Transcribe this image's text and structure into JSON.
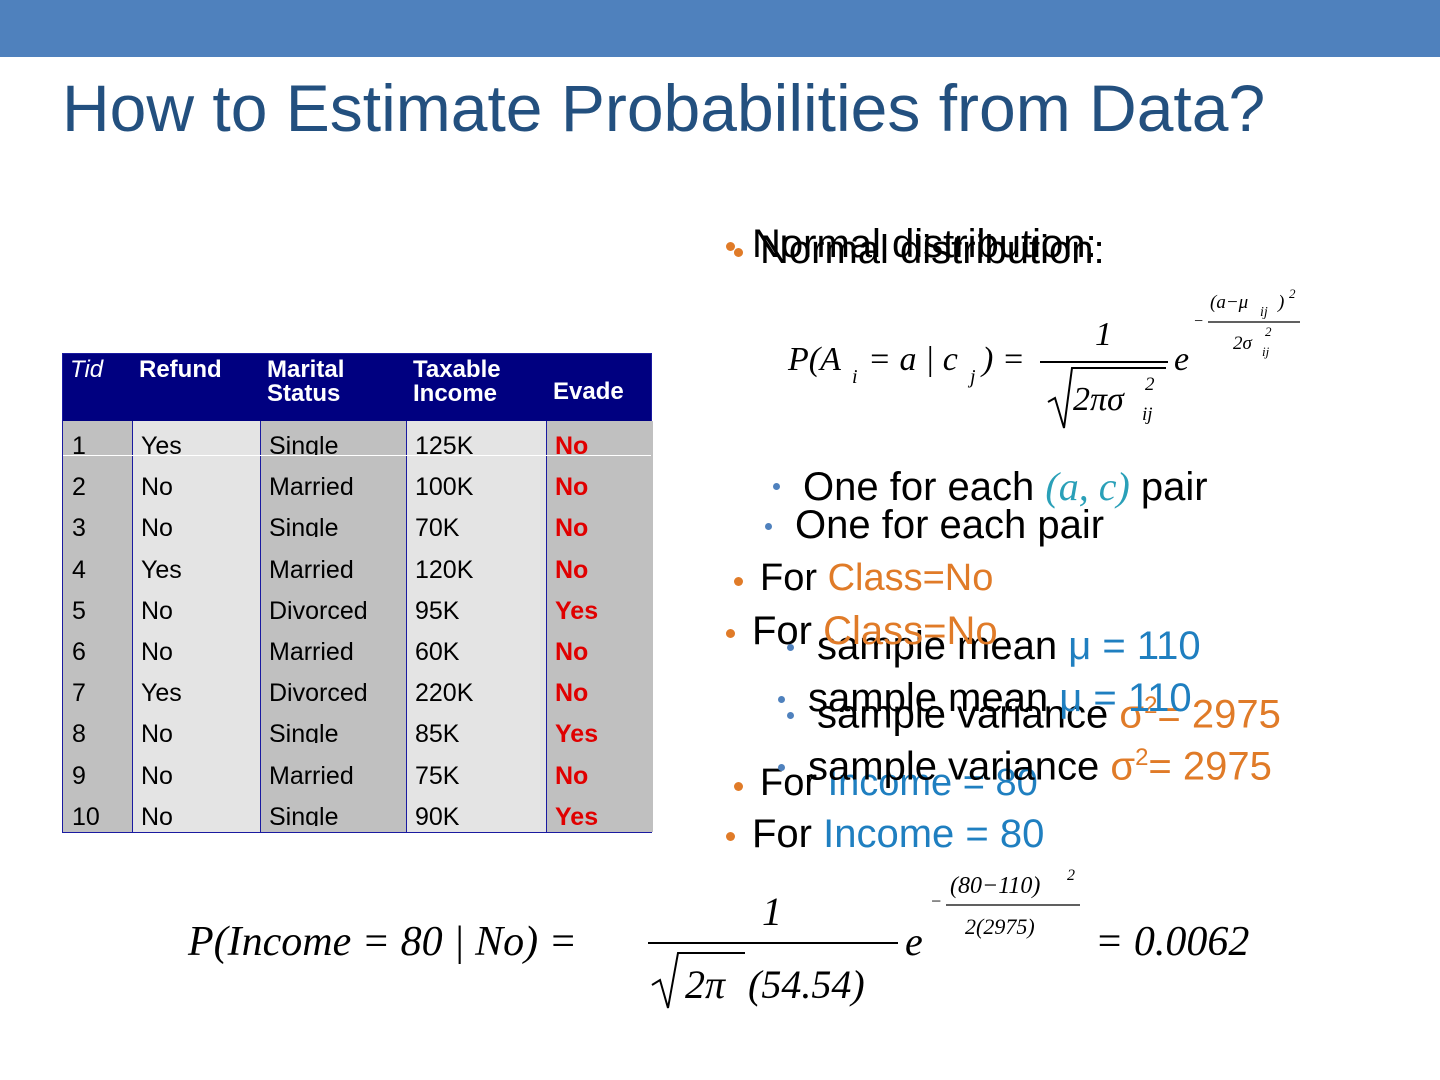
{
  "header": {
    "title": "How to Estimate Probabilities from Data?"
  },
  "table": {
    "columns": [
      "Tid",
      "Refund",
      "Marital Status",
      "Taxable Income",
      "Evade"
    ],
    "rows": [
      [
        "1",
        "Yes",
        "Single",
        "125K",
        "No"
      ],
      [
        "2",
        "No",
        "Married",
        "100K",
        "No"
      ],
      [
        "3",
        "No",
        "Single",
        "70K",
        "No"
      ],
      [
        "4",
        "Yes",
        "Married",
        "120K",
        "No"
      ],
      [
        "5",
        "No",
        "Divorced",
        "95K",
        "Yes"
      ],
      [
        "6",
        "No",
        "Married",
        "60K",
        "No"
      ],
      [
        "7",
        "Yes",
        "Divorced",
        "220K",
        "No"
      ],
      [
        "8",
        "No",
        "Single",
        "85K",
        "Yes"
      ],
      [
        "9",
        "No",
        "Married",
        "75K",
        "No"
      ],
      [
        "10",
        "No",
        "Single",
        "90K",
        "Yes"
      ]
    ]
  },
  "bullets": {
    "back": [
      {
        "segments": [
          {
            "text": "Normal distribution:",
            "color": "#000000"
          }
        ]
      },
      {
        "segments": [
          {
            "text": "One for each pair",
            "color": "#000000"
          }
        ]
      },
      {
        "segments": [
          {
            "text": "For ",
            "color": "#000000"
          },
          {
            "text": "Class=No",
            "color": "#e07b28"
          }
        ]
      },
      {
        "segments": [
          {
            "text": "sample mean ",
            "color": "#000000"
          },
          {
            "text": "μ = 110",
            "color": "#1f7fc0"
          }
        ]
      },
      {
        "segments": [
          {
            "text": "sample variance ",
            "color": "#000000"
          },
          {
            "text": "σ",
            "color": "#e07b28"
          },
          {
            "text": "2",
            "color": "#e07b28",
            "sup": true
          },
          {
            "text": "= 2975",
            "color": "#e07b28"
          }
        ]
      },
      {
        "segments": [
          {
            "text": "For ",
            "color": "#000000"
          },
          {
            "text": "Income = 80",
            "color": "#1f7fc0"
          }
        ]
      }
    ],
    "front": [
      {
        "segments": [
          {
            "text": "Normal distribution:",
            "color": "#000000"
          }
        ]
      },
      {
        "segments": [
          {
            "text": "One for each ",
            "color": "#000000"
          },
          {
            "text": "(a, c)",
            "color": "#2aa0b8"
          },
          {
            "text": " pair",
            "color": "#000000"
          }
        ]
      },
      {
        "segments": [
          {
            "text": "For ",
            "color": "#000000"
          },
          {
            "text": "Class=No",
            "color": "#e07b28"
          }
        ]
      },
      {
        "segments": [
          {
            "text": "sample mean ",
            "color": "#000000"
          },
          {
            "text": "μ = 110",
            "color": "#1f7fc0"
          }
        ]
      },
      {
        "segments": [
          {
            "text": "sample variance ",
            "color": "#000000"
          },
          {
            "text": "σ",
            "color": "#e07b28"
          },
          {
            "text": "2",
            "color": "#e07b28",
            "sup": true
          },
          {
            "text": "= 2975",
            "color": "#e07b28"
          }
        ]
      },
      {
        "segments": [
          {
            "text": "For ",
            "color": "#000000"
          },
          {
            "text": "Income = 80",
            "color": "#1f7fc0"
          }
        ]
      }
    ]
  },
  "formula_general": {
    "parts": [
      "P(A",
      "i",
      "= a | c",
      "j",
      ") =",
      "1",
      "2πσ",
      "2",
      "ij",
      "e",
      "−",
      "(a−μ",
      "ij",
      ")",
      "2",
      "2σ",
      "2",
      "ij"
    ]
  },
  "formula_income": {
    "parts": [
      "P(Income = 80 | No) =",
      "1",
      "2π",
      "(54.54)",
      "e",
      "−",
      "(80−110)",
      "2",
      "2(2975)",
      "= 0.0062"
    ]
  }
}
